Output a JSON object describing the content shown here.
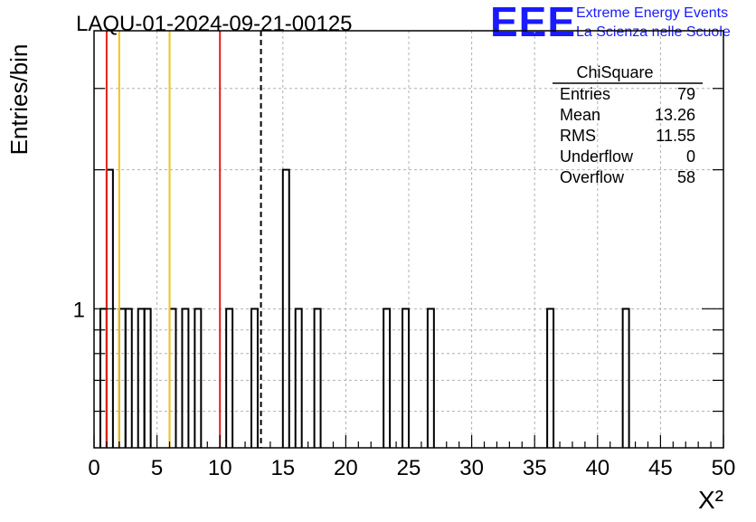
{
  "header": {
    "run_title": "LAQU-01-2024-09-21-00125",
    "logo_text": "EEE",
    "logo_line1": "Extreme Energy Events",
    "logo_line2": "La Scienza nelle Scuole"
  },
  "stats": {
    "title": "ChiSquare",
    "rows": [
      {
        "label": "Entries",
        "value": "79"
      },
      {
        "label": "Mean",
        "value": "13.26"
      },
      {
        "label": "RMS",
        "value": "11.55"
      },
      {
        "label": "Underflow",
        "value": "0"
      },
      {
        "label": "Overflow",
        "value": "58"
      }
    ]
  },
  "colors": {
    "red_line": "#e0201b",
    "yellow_line": "#f2c31a",
    "logo_blue": "#1a1aff",
    "grid": "#b0b0b0"
  },
  "chart_data": {
    "type": "bar",
    "histogram": true,
    "xlabel": "X²",
    "ylabel": "Entries/bin",
    "xlim": [
      0,
      50
    ],
    "y_scale": "log",
    "ylim": [
      0.5,
      4.0
    ],
    "y_tick_labels": [
      "1"
    ],
    "x_tick_labels": [
      "0",
      "5",
      "10",
      "15",
      "20",
      "25",
      "30",
      "35",
      "40",
      "45",
      "50"
    ],
    "bin_width": 0.5,
    "bins": [
      {
        "x0": 0.5,
        "count": 1
      },
      {
        "x0": 1.0,
        "count": 2
      },
      {
        "x0": 2.0,
        "count": 1
      },
      {
        "x0": 2.5,
        "count": 1
      },
      {
        "x0": 3.5,
        "count": 1
      },
      {
        "x0": 4.0,
        "count": 1
      },
      {
        "x0": 6.0,
        "count": 1
      },
      {
        "x0": 7.0,
        "count": 1
      },
      {
        "x0": 8.0,
        "count": 1
      },
      {
        "x0": 10.5,
        "count": 1
      },
      {
        "x0": 12.5,
        "count": 1
      },
      {
        "x0": 15.0,
        "count": 2
      },
      {
        "x0": 16.0,
        "count": 1
      },
      {
        "x0": 17.5,
        "count": 1
      },
      {
        "x0": 23.0,
        "count": 1
      },
      {
        "x0": 24.5,
        "count": 1
      },
      {
        "x0": 26.5,
        "count": 1
      },
      {
        "x0": 36.0,
        "count": 1
      },
      {
        "x0": 42.0,
        "count": 1
      }
    ],
    "vertical_lines": [
      {
        "x": 1.0,
        "color": "red",
        "style": "solid"
      },
      {
        "x": 2.0,
        "color": "yellow",
        "style": "solid"
      },
      {
        "x": 6.0,
        "color": "yellow",
        "style": "solid"
      },
      {
        "x": 10.0,
        "color": "red",
        "style": "solid"
      },
      {
        "x": 13.26,
        "color": "black",
        "style": "dashed"
      }
    ],
    "grid": true
  }
}
